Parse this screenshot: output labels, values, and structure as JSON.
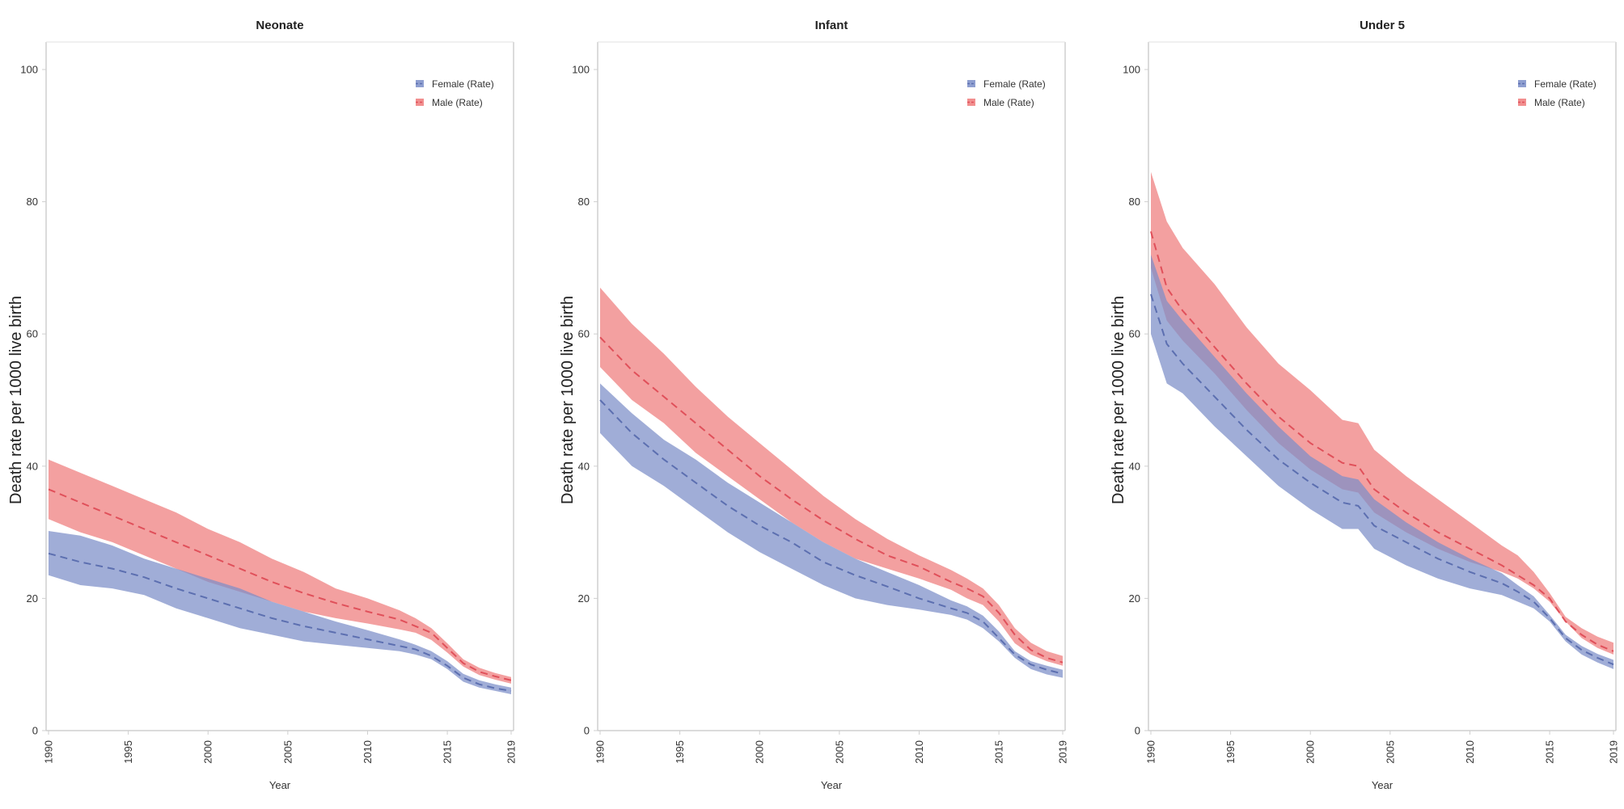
{
  "chart_data": [
    {
      "type": "area",
      "title": "Neonate",
      "xlabel": "Year",
      "ylabel": "Death rate per 1000 live birth",
      "xlim": [
        1990,
        2019
      ],
      "ylim": [
        0,
        100
      ],
      "yticks": [
        0,
        20,
        40,
        60,
        80,
        100
      ],
      "xticks": [
        1990,
        1995,
        2000,
        2005,
        2010,
        2015,
        2019
      ],
      "legend": {
        "position": "top-right",
        "entries": [
          "Female (Rate)",
          "Male (Rate)"
        ]
      },
      "x": [
        1990,
        1992,
        1994,
        1996,
        1998,
        2000,
        2002,
        2004,
        2006,
        2008,
        2010,
        2012,
        2013,
        2014,
        2015,
        2016,
        2017,
        2018,
        2019
      ],
      "series": [
        {
          "name": "Female (Rate)",
          "color": "#7b8ec8",
          "mean": [
            26.8,
            25.5,
            24.5,
            23.2,
            21.5,
            20.0,
            18.5,
            17.0,
            15.8,
            14.8,
            13.8,
            12.8,
            12.3,
            11.3,
            9.8,
            8.0,
            7.0,
            6.4,
            6.0
          ],
          "lower": [
            23.5,
            22.0,
            21.5,
            20.5,
            18.5,
            17.0,
            15.5,
            14.5,
            13.5,
            13.0,
            12.5,
            12.0,
            11.5,
            10.8,
            9.3,
            7.4,
            6.5,
            6.0,
            5.5
          ],
          "upper": [
            30.2,
            29.5,
            28.0,
            26.0,
            24.5,
            23.0,
            21.5,
            19.5,
            18.0,
            16.5,
            15.2,
            13.8,
            13.0,
            12.0,
            10.5,
            8.6,
            7.6,
            7.0,
            6.5
          ]
        },
        {
          "name": "Male (Rate)",
          "color": "#ef7b7b",
          "mean": [
            36.5,
            34.5,
            32.5,
            30.5,
            28.5,
            26.5,
            24.5,
            22.5,
            20.8,
            19.3,
            18.0,
            16.8,
            15.8,
            14.8,
            12.5,
            10.2,
            8.9,
            8.2,
            7.6
          ],
          "lower": [
            32.0,
            30.0,
            28.5,
            26.5,
            24.5,
            22.5,
            21.0,
            19.5,
            18.0,
            17.0,
            16.2,
            15.3,
            14.8,
            13.7,
            11.8,
            9.7,
            8.4,
            7.7,
            7.1
          ],
          "upper": [
            41.0,
            39.0,
            37.0,
            35.0,
            33.0,
            30.5,
            28.5,
            26.0,
            24.0,
            21.5,
            20.0,
            18.2,
            17.0,
            15.5,
            13.2,
            10.8,
            9.5,
            8.7,
            8.1
          ]
        }
      ]
    },
    {
      "type": "area",
      "title": "Infant",
      "xlabel": "Year",
      "ylabel": "Death rate per 1000 live birth",
      "xlim": [
        1990,
        2019
      ],
      "ylim": [
        0,
        100
      ],
      "yticks": [
        0,
        20,
        40,
        60,
        80,
        100
      ],
      "xticks": [
        1990,
        1995,
        2000,
        2005,
        2010,
        2015,
        2019
      ],
      "legend": {
        "position": "top-right",
        "entries": [
          "Female (Rate)",
          "Male (Rate)"
        ]
      },
      "x": [
        1990,
        1992,
        1994,
        1996,
        1998,
        2000,
        2002,
        2004,
        2006,
        2008,
        2010,
        2012,
        2013,
        2014,
        2015,
        2016,
        2017,
        2018,
        2019
      ],
      "series": [
        {
          "name": "Female (Rate)",
          "color": "#7b8ec8",
          "mean": [
            50.0,
            45.0,
            41.0,
            37.5,
            34.0,
            31.0,
            28.5,
            25.5,
            23.5,
            21.8,
            20.0,
            18.5,
            17.8,
            16.5,
            14.0,
            11.5,
            10.0,
            9.2,
            8.6
          ],
          "lower": [
            45.0,
            40.0,
            37.0,
            33.5,
            30.0,
            27.0,
            24.5,
            22.0,
            20.0,
            19.0,
            18.3,
            17.5,
            16.8,
            15.5,
            13.5,
            11.0,
            9.3,
            8.5,
            8.0
          ],
          "upper": [
            52.5,
            48.0,
            44.0,
            41.0,
            37.5,
            34.5,
            31.5,
            28.5,
            26.0,
            24.0,
            22.0,
            19.7,
            18.8,
            17.4,
            15.0,
            12.0,
            10.5,
            9.8,
            9.2
          ]
        },
        {
          "name": "Male (Rate)",
          "color": "#ef7b7b",
          "mean": [
            59.5,
            54.5,
            50.5,
            46.5,
            42.5,
            38.5,
            35.0,
            31.8,
            29.0,
            26.5,
            24.8,
            22.5,
            21.5,
            20.3,
            17.8,
            14.5,
            12.2,
            11.0,
            10.3
          ],
          "lower": [
            55.0,
            50.0,
            46.5,
            42.0,
            38.5,
            35.0,
            31.5,
            28.5,
            26.0,
            24.5,
            23.0,
            21.3,
            20.0,
            19.0,
            16.5,
            13.2,
            11.5,
            10.5,
            9.8
          ],
          "upper": [
            67.0,
            61.5,
            57.0,
            52.0,
            47.5,
            43.5,
            39.5,
            35.5,
            32.0,
            29.0,
            26.5,
            24.3,
            23.0,
            21.5,
            19.0,
            15.5,
            13.3,
            12.0,
            11.3
          ]
        }
      ]
    },
    {
      "type": "area",
      "title": "Under 5",
      "xlabel": "Year",
      "ylabel": "Death rate per 1000 live birth",
      "xlim": [
        1990,
        2019
      ],
      "ylim": [
        0,
        100
      ],
      "yticks": [
        0,
        20,
        40,
        60,
        80,
        100
      ],
      "xticks": [
        1990,
        1995,
        2000,
        2005,
        2010,
        2015,
        2019
      ],
      "legend": {
        "position": "top-right",
        "entries": [
          "Female (Rate)",
          "Male (Rate)"
        ]
      },
      "x": [
        1990,
        1991,
        1992,
        1994,
        1996,
        1998,
        2000,
        2002,
        2003,
        2004,
        2006,
        2008,
        2010,
        2012,
        2013,
        2014,
        2015,
        2016,
        2017,
        2018,
        2019
      ],
      "series": [
        {
          "name": "Female (Rate)",
          "color": "#7b8ec8",
          "mean": [
            66.0,
            58.5,
            55.5,
            50.5,
            45.5,
            41.0,
            37.5,
            34.5,
            34.0,
            31.0,
            28.5,
            26.0,
            24.0,
            22.3,
            21.0,
            19.5,
            17.0,
            14.0,
            12.2,
            11.0,
            10.0
          ],
          "lower": [
            60.0,
            52.5,
            51.0,
            46.0,
            41.5,
            37.0,
            33.5,
            30.5,
            30.5,
            27.5,
            25.0,
            23.0,
            21.5,
            20.5,
            19.5,
            18.5,
            16.5,
            13.5,
            11.5,
            10.3,
            9.3
          ],
          "upper": [
            72.0,
            65.0,
            62.0,
            56.5,
            51.0,
            46.0,
            41.5,
            38.5,
            38.0,
            35.0,
            31.5,
            28.5,
            26.0,
            23.8,
            22.0,
            20.3,
            17.5,
            14.5,
            12.8,
            11.6,
            10.7
          ]
        },
        {
          "name": "Male (Rate)",
          "color": "#ef7b7b",
          "mean": [
            75.5,
            67.0,
            63.5,
            58.0,
            52.5,
            47.5,
            43.5,
            40.5,
            40.0,
            36.5,
            33.0,
            30.0,
            27.5,
            25.0,
            23.5,
            22.0,
            20.0,
            16.5,
            14.5,
            13.0,
            12.0
          ],
          "lower": [
            70.0,
            62.0,
            59.0,
            54.0,
            48.5,
            43.5,
            39.5,
            36.5,
            36.0,
            33.0,
            30.0,
            27.5,
            25.5,
            24.0,
            23.0,
            21.5,
            19.5,
            16.5,
            14.0,
            12.5,
            11.5
          ],
          "upper": [
            84.5,
            77.0,
            73.0,
            67.5,
            61.0,
            55.5,
            51.5,
            47.0,
            46.5,
            42.5,
            38.5,
            35.0,
            31.5,
            28.0,
            26.5,
            24.0,
            20.8,
            17.2,
            15.5,
            14.2,
            13.3
          ]
        }
      ]
    }
  ]
}
